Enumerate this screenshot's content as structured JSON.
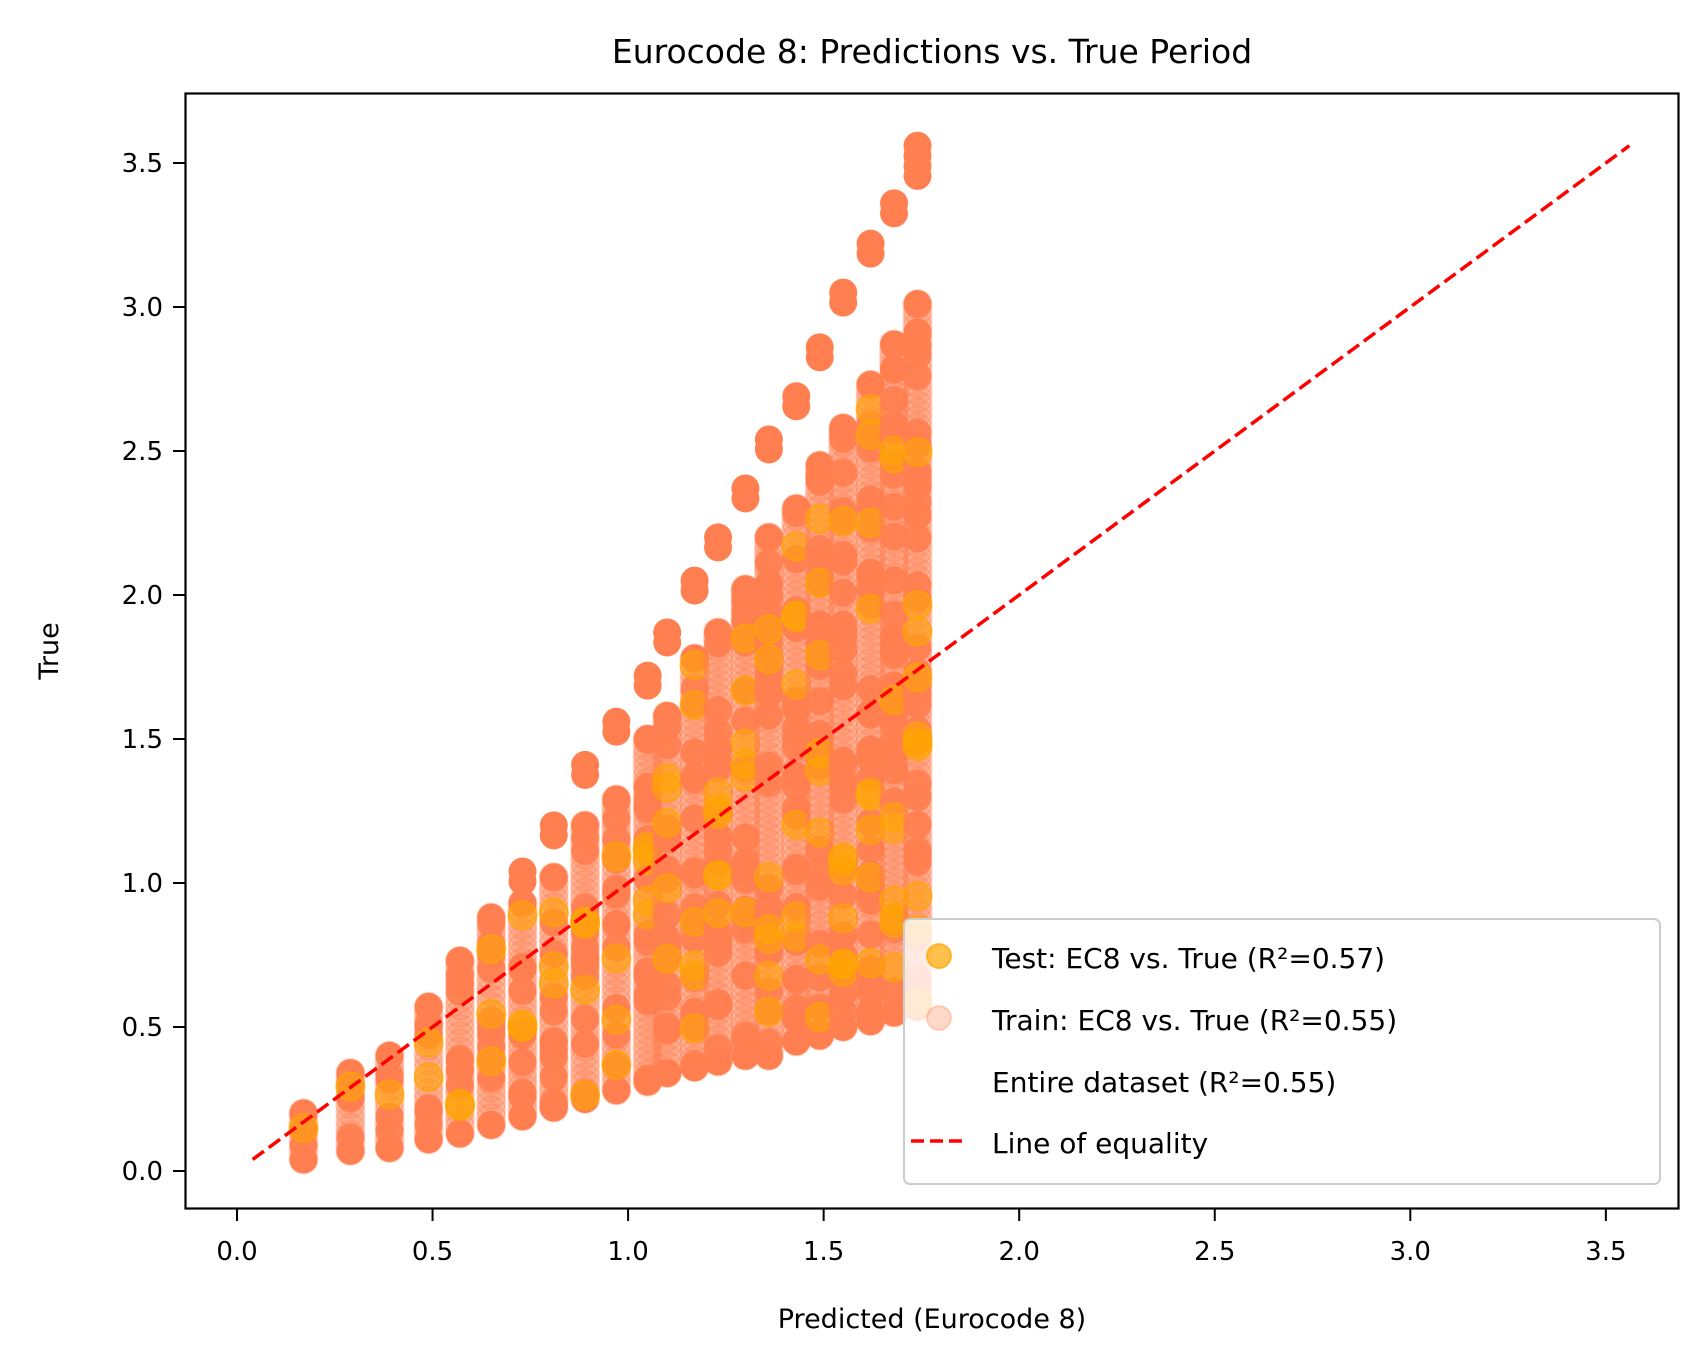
{
  "chart_data": {
    "type": "scatter",
    "title": "Eurocode 8: Predictions vs. True Period",
    "xlabel": "Predicted (Eurocode 8)",
    "ylabel": "True",
    "xlim": [
      -0.13,
      3.73
    ],
    "ylim": [
      -0.14,
      3.74
    ],
    "xticks": [
      "0.0",
      "0.5",
      "1.0",
      "1.5",
      "2.0",
      "2.5",
      "3.0",
      "3.5"
    ],
    "yticks": [
      "0.0",
      "0.5",
      "1.0",
      "1.5",
      "2.0",
      "2.5",
      "3.0",
      "3.5"
    ],
    "grid": false,
    "legend_position": "lower right",
    "series": [
      {
        "name": "Test: EC8 vs. True (R²=0.57)",
        "color": "#FFA500",
        "alpha": 0.7,
        "marker": "circle"
      },
      {
        "name": "Train: EC8 vs. True (R²=0.55)",
        "color": "#FF7F50",
        "alpha": 0.3,
        "marker": "circle"
      },
      {
        "name": "Entire dataset (R²=0.55)",
        "color": "#FF7F50",
        "alpha": 1.0,
        "marker": "circle"
      },
      {
        "name": "Line of equality",
        "color": "#FF0000",
        "style": "dashed",
        "x": [
          0.04,
          3.56
        ],
        "y": [
          0.04,
          3.56
        ]
      }
    ],
    "columns": [
      {
        "x": 0.17,
        "ymin": 0.04,
        "ymax": 0.2,
        "outliers": []
      },
      {
        "x": 0.29,
        "ymin": 0.07,
        "ymax": 0.34,
        "outliers": []
      },
      {
        "x": 0.39,
        "ymin": 0.08,
        "ymax": 0.4,
        "outliers": []
      },
      {
        "x": 0.49,
        "ymin": 0.11,
        "ymax": 0.57,
        "outliers": []
      },
      {
        "x": 0.57,
        "ymin": 0.13,
        "ymax": 0.73,
        "outliers": []
      },
      {
        "x": 0.65,
        "ymin": 0.16,
        "ymax": 0.88,
        "outliers": []
      },
      {
        "x": 0.73,
        "ymin": 0.19,
        "ymax": 0.93,
        "outliers": [
          1.04
        ]
      },
      {
        "x": 0.81,
        "ymin": 0.22,
        "ymax": 1.02,
        "outliers": [
          1.2
        ]
      },
      {
        "x": 0.89,
        "ymin": 0.25,
        "ymax": 1.2,
        "outliers": [
          1.41
        ]
      },
      {
        "x": 0.97,
        "ymin": 0.28,
        "ymax": 1.29,
        "outliers": [
          1.56
        ]
      },
      {
        "x": 1.05,
        "ymin": 0.31,
        "ymax": 1.5,
        "outliers": [
          1.72
        ]
      },
      {
        "x": 1.1,
        "ymin": 0.34,
        "ymax": 1.58,
        "outliers": [
          1.87
        ]
      },
      {
        "x": 1.17,
        "ymin": 0.36,
        "ymax": 1.78,
        "outliers": [
          2.05
        ]
      },
      {
        "x": 1.23,
        "ymin": 0.38,
        "ymax": 1.87,
        "outliers": [
          2.2
        ]
      },
      {
        "x": 1.3,
        "ymin": 0.4,
        "ymax": 2.02,
        "outliers": [
          2.37
        ]
      },
      {
        "x": 1.36,
        "ymin": 0.4,
        "ymax": 2.2,
        "outliers": [
          2.54
        ]
      },
      {
        "x": 1.43,
        "ymin": 0.45,
        "ymax": 2.3,
        "outliers": [
          2.69
        ]
      },
      {
        "x": 1.49,
        "ymin": 0.47,
        "ymax": 2.45,
        "outliers": [
          2.86
        ]
      },
      {
        "x": 1.55,
        "ymin": 0.5,
        "ymax": 2.58,
        "outliers": [
          3.05
        ]
      },
      {
        "x": 1.62,
        "ymin": 0.52,
        "ymax": 2.73,
        "outliers": [
          3.22
        ]
      },
      {
        "x": 1.68,
        "ymin": 0.55,
        "ymax": 2.87,
        "outliers": [
          3.36
        ]
      },
      {
        "x": 1.74,
        "ymin": 0.57,
        "ymax": 3.01,
        "outliers": [
          3.49,
          3.56
        ]
      }
    ]
  },
  "legend": {
    "items": [
      {
        "label": "Test: EC8 vs. True (R²=0.57)"
      },
      {
        "label": "Train: EC8 vs. True (R²=0.55)"
      },
      {
        "label": "Entire dataset (R²=0.55)"
      },
      {
        "label": "Line of equality"
      }
    ]
  }
}
